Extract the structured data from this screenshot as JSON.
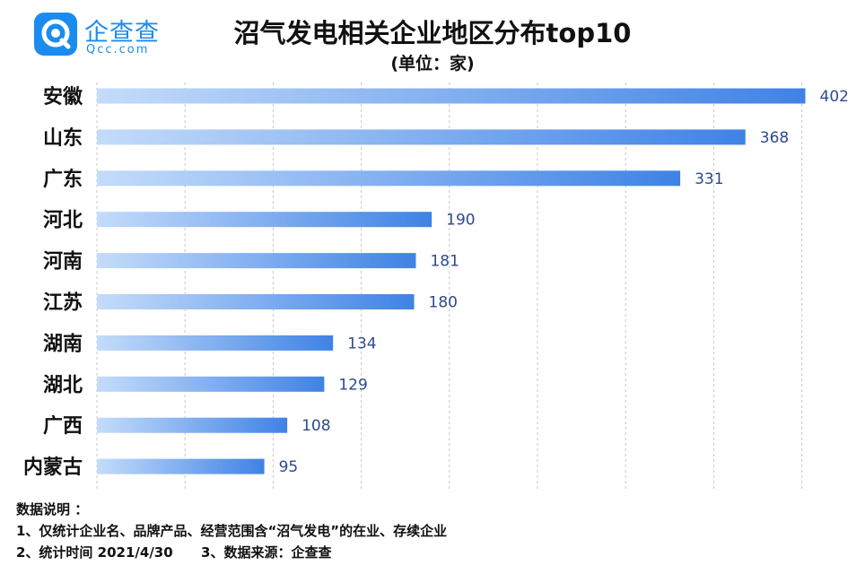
{
  "logo": {
    "cn": "企查查",
    "en": "Qcc.com"
  },
  "chart_data": {
    "type": "bar",
    "orientation": "horizontal",
    "title": "沼气发电相关企业地区分布top10",
    "subtitle": "(单位：家)",
    "categories": [
      "安徽",
      "山东",
      "广东",
      "河北",
      "河南",
      "江苏",
      "湖南",
      "湖北",
      "广西",
      "内蒙古"
    ],
    "values": [
      402,
      368,
      331,
      190,
      181,
      180,
      134,
      129,
      108,
      95
    ],
    "xlim": [
      0,
      400
    ],
    "grid": true,
    "colors": {
      "bar_start": "#c4dcfa",
      "bar_end": "#3f82e6",
      "label": "#2e4a8c",
      "grid": "#c8c8c8"
    }
  },
  "notes": {
    "heading": "数据说明 ：",
    "line1": "1、仅统计企业名、品牌产品、经营范围含“沼气发电”的在业、存续企业",
    "line2": "2、统计时间 2021/4/30      3、数据来源：企查查"
  }
}
